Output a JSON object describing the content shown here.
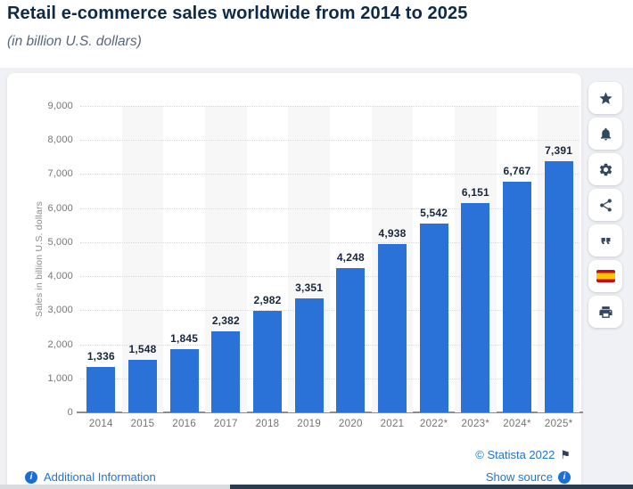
{
  "page": {
    "title": "Retail e-commerce sales worldwide from 2014 to 2025",
    "subtitle": "(in billion U.S. dollars)"
  },
  "chart_data": {
    "type": "bar",
    "title": "Retail e-commerce sales worldwide from 2014 to 2025",
    "subtitle": "(in billion U.S. dollars)",
    "categories": [
      "2014",
      "2015",
      "2016",
      "2017",
      "2018",
      "2019",
      "2020",
      "2021",
      "2022*",
      "2023*",
      "2024*",
      "2025*"
    ],
    "values": [
      1336,
      1548,
      1845,
      2382,
      2982,
      3351,
      4248,
      4938,
      5542,
      6151,
      6767,
      7391
    ],
    "value_labels": [
      "1,336",
      "1,548",
      "1,845",
      "2,382",
      "2,982",
      "3,351",
      "4,248",
      "4,938",
      "5,542",
      "6,151",
      "6,767",
      "7,391"
    ],
    "xlabel": "",
    "ylabel": "Sales in billion U.S. dollars",
    "ylim": [
      0,
      9000
    ],
    "ytick_interval": 1000,
    "yticks": [
      "0",
      "1,000",
      "2,000",
      "3,000",
      "4,000",
      "5,000",
      "6,000",
      "7,000",
      "8,000",
      "9,000"
    ],
    "grid": true,
    "gridline_style": "dotted",
    "legend": false,
    "bar_color": "#2a72d8",
    "alternating_band_color": "#f7f7f8"
  },
  "icon_rail": {
    "buttons": [
      {
        "icon": "star-icon"
      },
      {
        "icon": "bell-icon"
      },
      {
        "icon": "gear-icon"
      },
      {
        "icon": "share-icon"
      },
      {
        "icon": "quote-icon"
      },
      {
        "icon": "spanish-flag-icon"
      },
      {
        "icon": "printer-icon"
      }
    ]
  },
  "footer": {
    "additional_information": "Additional Information",
    "copyright": "© Statista 2022",
    "show_source": "Show source"
  },
  "colors": {
    "title": "#0d2a47",
    "subtitle": "#56677d",
    "bar": "#2a72d8",
    "link_blue": "#2273d1",
    "page_background": "#f0f1f5",
    "card_background": "#ffffff",
    "bottom_strip_light": "#d9dbdf",
    "bottom_strip_dark": "#2d3b4e"
  }
}
